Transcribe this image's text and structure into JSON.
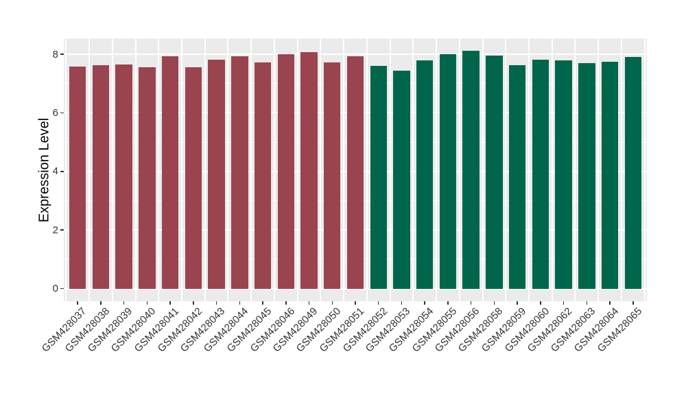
{
  "chart_data": {
    "type": "bar",
    "title": "",
    "xlabel": "",
    "ylabel": "Expression Level",
    "legend_position": "none",
    "grid": true,
    "categories": [
      "GSM428037",
      "GSM428038",
      "GSM428039",
      "GSM428040",
      "GSM428041",
      "GSM428042",
      "GSM428043",
      "GSM428044",
      "GSM428045",
      "GSM428046",
      "GSM428049",
      "GSM428050",
      "GSM428051",
      "GSM428052",
      "GSM428053",
      "GSM428054",
      "GSM428055",
      "GSM428056",
      "GSM428058",
      "GSM428059",
      "GSM428060",
      "GSM428062",
      "GSM428063",
      "GSM428064",
      "GSM428065"
    ],
    "values": [
      7.58,
      7.62,
      7.66,
      7.56,
      7.94,
      7.55,
      7.82,
      7.92,
      7.73,
      8.0,
      8.07,
      7.72,
      7.93,
      7.6,
      7.43,
      7.78,
      8.0,
      8.11,
      7.96,
      7.62,
      7.81,
      7.8,
      7.7,
      7.75,
      7.9
    ],
    "groups": [
      {
        "color": "#9A4450",
        "count": 13
      },
      {
        "color": "#00664B",
        "count": 12
      }
    ],
    "yticks": [
      0,
      2,
      4,
      6,
      8
    ],
    "yticks_minor": [
      1,
      3,
      5,
      7
    ],
    "ylim_panel": [
      -0.43,
      8.54
    ],
    "bar_width_fraction": 0.725,
    "panel_bg": "#EBEBEB",
    "grid_color": "#FFFFFF",
    "axis_text_color": "#333333",
    "figure_bg": "#FFFFFF"
  }
}
